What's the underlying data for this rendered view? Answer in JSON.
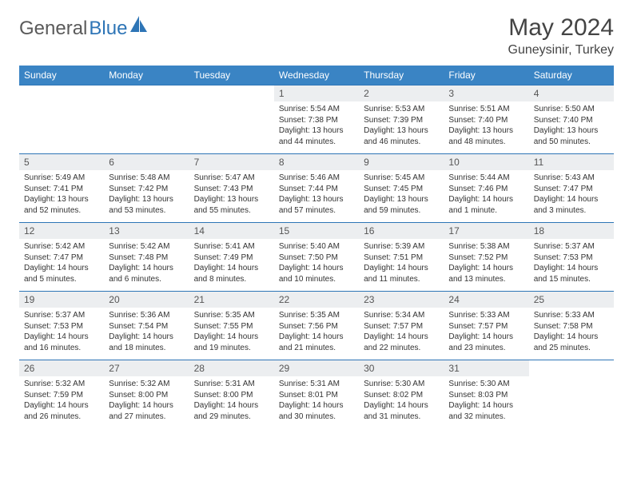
{
  "brand": {
    "name1": "General",
    "name2": "Blue"
  },
  "title": "May 2024",
  "location": "Guneysinir, Turkey",
  "colors": {
    "header_bg": "#3a84c4",
    "header_text": "#ffffff",
    "border": "#2e75b6",
    "daynum_bg": "#eceef0",
    "text": "#333333",
    "brand_gray": "#5a5a5a",
    "brand_blue": "#2e75b6",
    "page_bg": "#ffffff"
  },
  "fonts": {
    "title_size": 30,
    "location_size": 16,
    "header_size": 12,
    "body_size": 10
  },
  "weekdays": [
    "Sunday",
    "Monday",
    "Tuesday",
    "Wednesday",
    "Thursday",
    "Friday",
    "Saturday"
  ],
  "layout": {
    "cols": 7,
    "rows": 5,
    "first_weekday_index": 3,
    "days_in_month": 31
  },
  "days": [
    {
      "n": 1,
      "sunrise": "5:54 AM",
      "sunset": "7:38 PM",
      "daylight": "13 hours and 44 minutes."
    },
    {
      "n": 2,
      "sunrise": "5:53 AM",
      "sunset": "7:39 PM",
      "daylight": "13 hours and 46 minutes."
    },
    {
      "n": 3,
      "sunrise": "5:51 AM",
      "sunset": "7:40 PM",
      "daylight": "13 hours and 48 minutes."
    },
    {
      "n": 4,
      "sunrise": "5:50 AM",
      "sunset": "7:40 PM",
      "daylight": "13 hours and 50 minutes."
    },
    {
      "n": 5,
      "sunrise": "5:49 AM",
      "sunset": "7:41 PM",
      "daylight": "13 hours and 52 minutes."
    },
    {
      "n": 6,
      "sunrise": "5:48 AM",
      "sunset": "7:42 PM",
      "daylight": "13 hours and 53 minutes."
    },
    {
      "n": 7,
      "sunrise": "5:47 AM",
      "sunset": "7:43 PM",
      "daylight": "13 hours and 55 minutes."
    },
    {
      "n": 8,
      "sunrise": "5:46 AM",
      "sunset": "7:44 PM",
      "daylight": "13 hours and 57 minutes."
    },
    {
      "n": 9,
      "sunrise": "5:45 AM",
      "sunset": "7:45 PM",
      "daylight": "13 hours and 59 minutes."
    },
    {
      "n": 10,
      "sunrise": "5:44 AM",
      "sunset": "7:46 PM",
      "daylight": "14 hours and 1 minute."
    },
    {
      "n": 11,
      "sunrise": "5:43 AM",
      "sunset": "7:47 PM",
      "daylight": "14 hours and 3 minutes."
    },
    {
      "n": 12,
      "sunrise": "5:42 AM",
      "sunset": "7:47 PM",
      "daylight": "14 hours and 5 minutes."
    },
    {
      "n": 13,
      "sunrise": "5:42 AM",
      "sunset": "7:48 PM",
      "daylight": "14 hours and 6 minutes."
    },
    {
      "n": 14,
      "sunrise": "5:41 AM",
      "sunset": "7:49 PM",
      "daylight": "14 hours and 8 minutes."
    },
    {
      "n": 15,
      "sunrise": "5:40 AM",
      "sunset": "7:50 PM",
      "daylight": "14 hours and 10 minutes."
    },
    {
      "n": 16,
      "sunrise": "5:39 AM",
      "sunset": "7:51 PM",
      "daylight": "14 hours and 11 minutes."
    },
    {
      "n": 17,
      "sunrise": "5:38 AM",
      "sunset": "7:52 PM",
      "daylight": "14 hours and 13 minutes."
    },
    {
      "n": 18,
      "sunrise": "5:37 AM",
      "sunset": "7:53 PM",
      "daylight": "14 hours and 15 minutes."
    },
    {
      "n": 19,
      "sunrise": "5:37 AM",
      "sunset": "7:53 PM",
      "daylight": "14 hours and 16 minutes."
    },
    {
      "n": 20,
      "sunrise": "5:36 AM",
      "sunset": "7:54 PM",
      "daylight": "14 hours and 18 minutes."
    },
    {
      "n": 21,
      "sunrise": "5:35 AM",
      "sunset": "7:55 PM",
      "daylight": "14 hours and 19 minutes."
    },
    {
      "n": 22,
      "sunrise": "5:35 AM",
      "sunset": "7:56 PM",
      "daylight": "14 hours and 21 minutes."
    },
    {
      "n": 23,
      "sunrise": "5:34 AM",
      "sunset": "7:57 PM",
      "daylight": "14 hours and 22 minutes."
    },
    {
      "n": 24,
      "sunrise": "5:33 AM",
      "sunset": "7:57 PM",
      "daylight": "14 hours and 23 minutes."
    },
    {
      "n": 25,
      "sunrise": "5:33 AM",
      "sunset": "7:58 PM",
      "daylight": "14 hours and 25 minutes."
    },
    {
      "n": 26,
      "sunrise": "5:32 AM",
      "sunset": "7:59 PM",
      "daylight": "14 hours and 26 minutes."
    },
    {
      "n": 27,
      "sunrise": "5:32 AM",
      "sunset": "8:00 PM",
      "daylight": "14 hours and 27 minutes."
    },
    {
      "n": 28,
      "sunrise": "5:31 AM",
      "sunset": "8:00 PM",
      "daylight": "14 hours and 29 minutes."
    },
    {
      "n": 29,
      "sunrise": "5:31 AM",
      "sunset": "8:01 PM",
      "daylight": "14 hours and 30 minutes."
    },
    {
      "n": 30,
      "sunrise": "5:30 AM",
      "sunset": "8:02 PM",
      "daylight": "14 hours and 31 minutes."
    },
    {
      "n": 31,
      "sunrise": "5:30 AM",
      "sunset": "8:03 PM",
      "daylight": "14 hours and 32 minutes."
    }
  ],
  "labels": {
    "sunrise": "Sunrise:",
    "sunset": "Sunset:",
    "daylight": "Daylight:"
  }
}
